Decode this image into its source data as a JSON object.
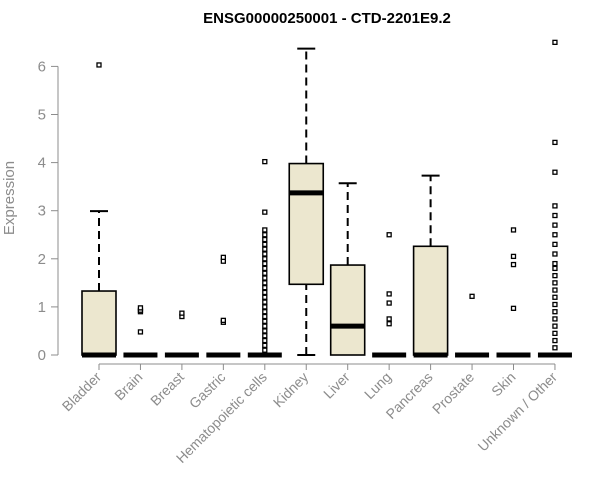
{
  "chart_data": {
    "type": "box",
    "title": "ENSG00000250001 - CTD-2201E9.2",
    "ylabel": "Expression",
    "xlabel": "",
    "ylim": [
      0,
      6.6
    ],
    "yticks": [
      0,
      1,
      2,
      3,
      4,
      5,
      6
    ],
    "grid": false,
    "colors": {
      "box_fill": "#ece7cf",
      "stroke": "#000000",
      "axis": "#8c8c8c"
    },
    "categories": [
      "Bladder",
      "Brain",
      "Breast",
      "Gastric",
      "Hematopoietic cells",
      "Kidney",
      "Liver",
      "Lung",
      "Pancreas",
      "Prostate",
      "Skin",
      "Unknown / Other"
    ],
    "boxes": [
      {
        "category": "Bladder",
        "lower_whisker": 0,
        "q1": 0,
        "median": 0,
        "q3": 1.33,
        "upper_whisker": 2.99,
        "outliers": [
          6.03
        ]
      },
      {
        "category": "Brain",
        "lower_whisker": 0,
        "q1": 0,
        "median": 0,
        "q3": 0,
        "upper_whisker": 0,
        "outliers": [
          0.48,
          0.9,
          0.93,
          0.98
        ]
      },
      {
        "category": "Breast",
        "lower_whisker": 0,
        "q1": 0,
        "median": 0,
        "q3": 0,
        "upper_whisker": 0,
        "outliers": [
          0.8,
          0.87
        ]
      },
      {
        "category": "Gastric",
        "lower_whisker": 0,
        "q1": 0,
        "median": 0,
        "q3": 0,
        "upper_whisker": 0,
        "outliers": [
          0.68,
          0.72,
          1.95,
          2.03
        ]
      },
      {
        "category": "Hematopoietic cells",
        "lower_whisker": 0,
        "q1": 0,
        "median": 0,
        "q3": 0,
        "upper_whisker": 0,
        "outliers": [
          0.1,
          0.2,
          0.3,
          0.4,
          0.5,
          0.6,
          0.7,
          0.8,
          0.9,
          1.0,
          1.1,
          1.2,
          1.3,
          1.4,
          1.5,
          1.6,
          1.7,
          1.8,
          1.9,
          2.0,
          2.1,
          2.2,
          2.3,
          2.4,
          2.5,
          2.6,
          2.97,
          4.02
        ]
      },
      {
        "category": "Kidney",
        "lower_whisker": 0,
        "q1": 1.47,
        "median": 3.37,
        "q3": 3.98,
        "upper_whisker": 6.37,
        "outliers": []
      },
      {
        "category": "Liver",
        "lower_whisker": 0,
        "q1": 0,
        "median": 0.6,
        "q3": 1.87,
        "upper_whisker": 3.57,
        "outliers": []
      },
      {
        "category": "Lung",
        "lower_whisker": 0,
        "q1": 0,
        "median": 0,
        "q3": 0,
        "upper_whisker": 0,
        "outliers": [
          0.65,
          0.75,
          1.08,
          1.27,
          2.5
        ]
      },
      {
        "category": "Pancreas",
        "lower_whisker": 0,
        "q1": 0,
        "median": 0,
        "q3": 2.26,
        "upper_whisker": 3.73,
        "outliers": []
      },
      {
        "category": "Prostate",
        "lower_whisker": 0,
        "q1": 0,
        "median": 0,
        "q3": 0,
        "upper_whisker": 0,
        "outliers": [
          1.22
        ]
      },
      {
        "category": "Skin",
        "lower_whisker": 0,
        "q1": 0,
        "median": 0,
        "q3": 0,
        "upper_whisker": 0,
        "outliers": [
          0.97,
          1.88,
          2.05,
          2.6
        ]
      },
      {
        "category": "Unknown / Other",
        "lower_whisker": 0,
        "q1": 0,
        "median": 0,
        "q3": 0,
        "upper_whisker": 0,
        "outliers": [
          0.15,
          0.3,
          0.45,
          0.6,
          0.75,
          0.9,
          1.05,
          1.2,
          1.35,
          1.5,
          1.65,
          1.8,
          1.9,
          2.1,
          2.3,
          2.5,
          2.7,
          2.9,
          3.1,
          3.8,
          4.42,
          6.5
        ]
      }
    ]
  }
}
